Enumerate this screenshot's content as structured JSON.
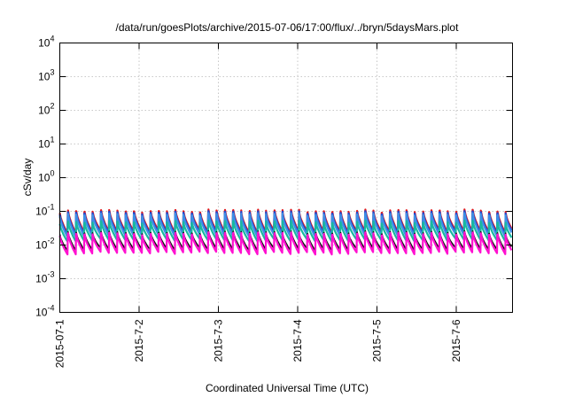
{
  "chart_data": {
    "type": "line",
    "title": "/data/run/goesPlots/archive/2015-07-06/17:00/flux/../bryn/5daysMars.plot",
    "xlabel": "Coordinated Universal Time (UTC)",
    "ylabel": "cSv/day",
    "y_scale": "log",
    "ylim": [
      0.0001,
      10000
    ],
    "xlim": [
      "2015-07-01",
      "2015-07-06 17:00"
    ],
    "x_ticks": [
      "2015-07-1",
      "2015-7-2",
      "2015-7-3",
      "2015-7-4",
      "2015-7-5",
      "2015-7-6"
    ],
    "y_ticks": [
      {
        "base": "10",
        "exp": "-4"
      },
      {
        "base": "10",
        "exp": "-3"
      },
      {
        "base": "10",
        "exp": "-2"
      },
      {
        "base": "10",
        "exp": "-1"
      },
      {
        "base": "10",
        "exp": "0"
      },
      {
        "base": "10",
        "exp": "1"
      },
      {
        "base": "10",
        "exp": "2"
      },
      {
        "base": "10",
        "exp": "3"
      },
      {
        "base": "10",
        "exp": "4"
      }
    ],
    "grid": true,
    "series": [
      {
        "color": "#e0181c",
        "peak": 0.095,
        "trough": 0.025
      },
      {
        "color": "#1e44cf",
        "peak": 0.085,
        "trough": 0.022
      },
      {
        "color": "#3d8fe6",
        "peak": 0.075,
        "trough": 0.019
      },
      {
        "color": "#18b8a0",
        "peak": 0.045,
        "trough": 0.014
      },
      {
        "color": "#111111",
        "peak": 0.022,
        "trough": 0.0075
      },
      {
        "color": "#ff10d0",
        "peak": 0.02,
        "trough": 0.0058
      }
    ]
  }
}
